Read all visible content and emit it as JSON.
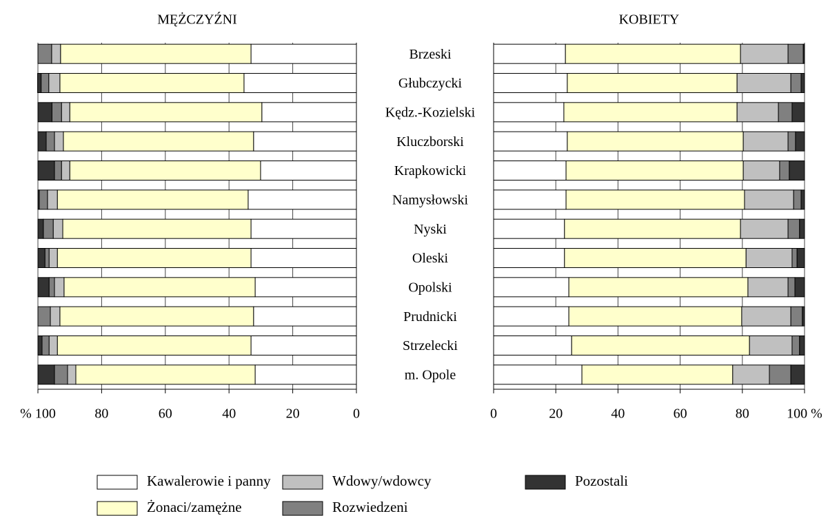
{
  "chart_data": [
    {
      "type": "bar",
      "orientation": "horizontal",
      "stacked": true,
      "title": "MĘŻCZYŹNI",
      "categories": [
        "Brzeski",
        "Głubczycki",
        "Kędz.-Kozielski",
        "Kluczborski",
        "Krapkowicki",
        "Namysłowski",
        "Nyski",
        "Oleski",
        "Opolski",
        "Prudnicki",
        "Strzelecki",
        "m. Opole"
      ],
      "xlim": [
        100,
        0
      ],
      "xticks": [
        {
          "value": 100,
          "label": "% 100"
        },
        80,
        60,
        40,
        20,
        0
      ],
      "grid": true,
      "series": [
        {
          "name": "Kawalerowie i panny",
          "color": "#ffffff",
          "values": [
            33.1,
            35.3,
            29.7,
            32.3,
            30.1,
            34.0,
            33.1,
            33.1,
            31.8,
            32.3,
            33.1,
            31.8
          ]
        },
        {
          "name": "Żonaci/zamężne",
          "color": "#ffffcc",
          "values": [
            59.8,
            57.8,
            60.3,
            59.7,
            59.9,
            59.9,
            59.1,
            60.8,
            60.0,
            60.8,
            60.8,
            56.3
          ]
        },
        {
          "name": "Wdowy/wdowcy",
          "color": "#c0c0c0",
          "values": [
            2.8,
            3.5,
            2.6,
            2.8,
            2.6,
            3.1,
            3.0,
            2.6,
            3.0,
            3.0,
            2.6,
            2.6
          ]
        },
        {
          "name": "Rozwiedzeni",
          "color": "#808080",
          "values": [
            4.3,
            2.4,
            3.0,
            2.6,
            2.2,
            2.6,
            3.1,
            1.3,
            1.7,
            3.9,
            2.2,
            4.1
          ]
        },
        {
          "name": "Pozostali",
          "color": "#333333",
          "values": [
            0,
            1.1,
            4.4,
            2.6,
            5.2,
            0.4,
            1.7,
            2.2,
            3.5,
            0,
            1.3,
            5.2
          ]
        }
      ]
    },
    {
      "type": "bar",
      "orientation": "horizontal",
      "stacked": true,
      "title": "KOBIETY",
      "xlim": [
        0,
        100
      ],
      "xticks": [
        0,
        20,
        40,
        60,
        80,
        {
          "value": 100,
          "label": "100 %"
        }
      ],
      "grid": true,
      "series": [
        {
          "color": "#ffffff",
          "values": [
            23.1,
            23.7,
            22.6,
            23.7,
            23.3,
            23.3,
            22.8,
            22.8,
            24.2,
            24.2,
            25.1,
            28.4
          ]
        },
        {
          "color": "#ffffcc",
          "values": [
            56.3,
            54.6,
            55.7,
            56.6,
            57.0,
            57.4,
            56.6,
            58.4,
            57.6,
            55.6,
            57.2,
            48.5
          ]
        },
        {
          "color": "#c0c0c0",
          "values": [
            15.3,
            17.3,
            13.3,
            14.4,
            11.7,
            15.8,
            15.3,
            14.8,
            12.9,
            15.8,
            13.7,
            11.8
          ]
        },
        {
          "color": "#808080",
          "values": [
            4.9,
            3.3,
            4.4,
            2.4,
            3.1,
            2.4,
            3.7,
            1.6,
            2.2,
            3.7,
            2.4,
            6.9
          ]
        },
        {
          "color": "#333333",
          "values": [
            0.4,
            1.1,
            4.0,
            2.9,
            4.9,
            1.1,
            1.6,
            2.4,
            3.1,
            0.7,
            1.6,
            4.4
          ]
        }
      ]
    }
  ]
}
